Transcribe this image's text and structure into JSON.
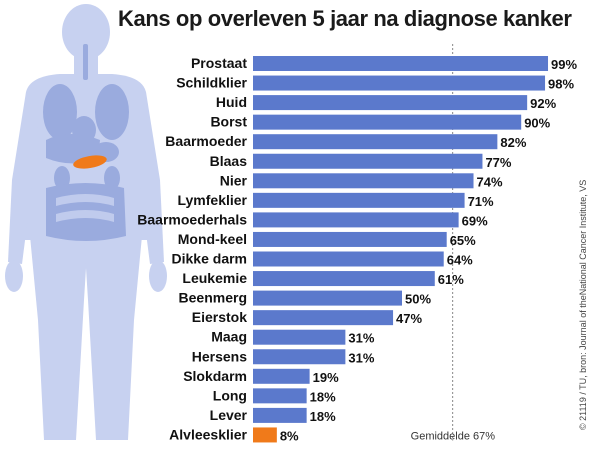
{
  "chart_data": {
    "type": "bar",
    "orientation": "horizontal",
    "title": "Kans op overleven 5 jaar na diagnose kanker",
    "categories": [
      "Prostaat",
      "Schildklier",
      "Huid",
      "Borst",
      "Baarmoeder",
      "Blaas",
      "Nier",
      "Lymfeklier",
      "Baarmoederhals",
      "Mond-keel",
      "Dikke darm",
      "Leukemie",
      "Beenmerg",
      "Eierstok",
      "Maag",
      "Hersens",
      "Slokdarm",
      "Long",
      "Lever",
      "Alvleesklier"
    ],
    "values": [
      99,
      98,
      92,
      90,
      82,
      77,
      74,
      71,
      69,
      65,
      64,
      61,
      50,
      47,
      31,
      31,
      19,
      18,
      18,
      8
    ],
    "value_labels": [
      "99%",
      "98%",
      "92%",
      "90%",
      "82%",
      "77%",
      "74%",
      "71%",
      "69%",
      "65%",
      "64%",
      "61%",
      "50%",
      "47%",
      "31%",
      "31%",
      "19%",
      "18%",
      "18%",
      "8%"
    ],
    "xlim": [
      0,
      100
    ],
    "highlight_category": "Alvleesklier",
    "reference_line": {
      "value": 67,
      "label": "Gemiddelde 67%"
    },
    "grid": false,
    "colors": {
      "bar": "#5b79cc",
      "highlight": "#f07a1a",
      "body": "#c7d1f0",
      "organs": "#9aabde"
    }
  },
  "source_text": "© 21119 / TU, bron: Journal of theNational Cancer Institute, VS"
}
